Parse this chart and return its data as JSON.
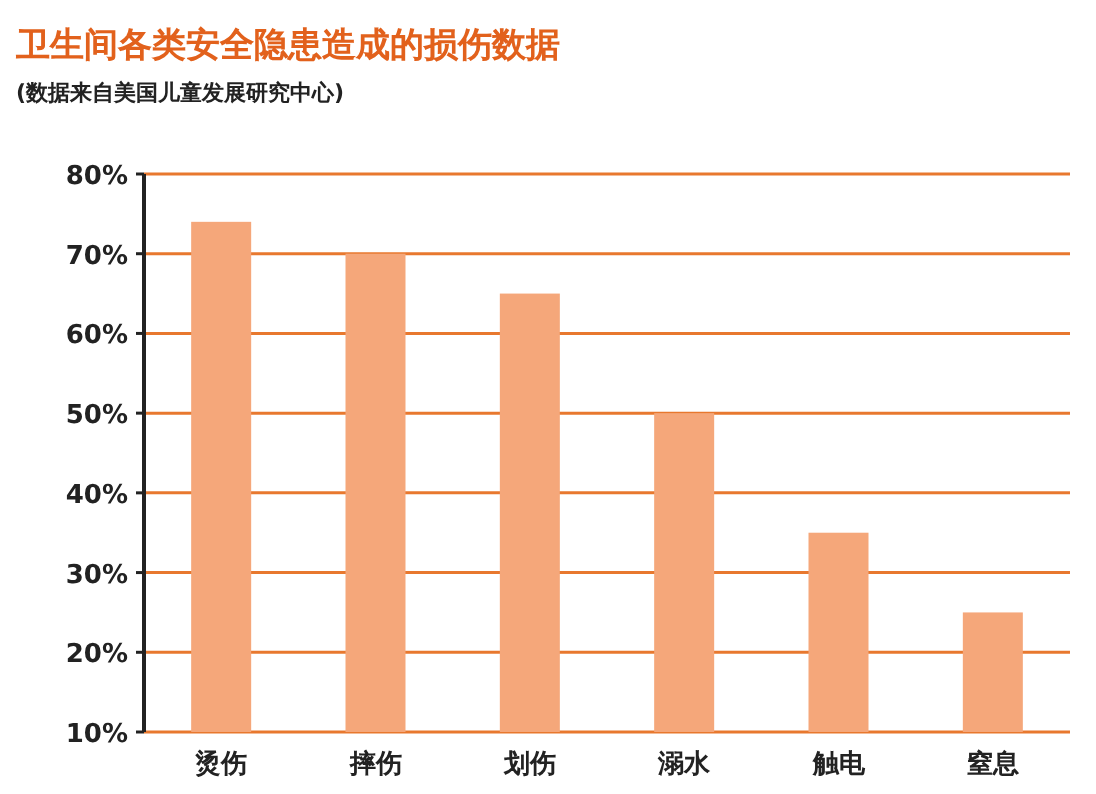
{
  "chart_data": {
    "type": "bar",
    "title": "卫生间各类安全隐患造成的损伤数据",
    "subtitle": "(数据来自美国儿童发展研究中心)",
    "categories": [
      "烫伤",
      "摔伤",
      "划伤",
      "溺水",
      "触电",
      "窒息"
    ],
    "values": [
      74,
      70,
      65,
      50,
      35,
      25
    ],
    "color": "#f5a77a",
    "ylim": [
      10,
      80
    ],
    "yticks": [
      {
        "value": 10,
        "label": "10%"
      },
      {
        "value": 20,
        "label": "20%"
      },
      {
        "value": 30,
        "label": "30%"
      },
      {
        "value": 40,
        "label": "40%"
      },
      {
        "value": 50,
        "label": "50%"
      },
      {
        "value": 60,
        "label": "60%"
      },
      {
        "value": 70,
        "label": "70%"
      },
      {
        "value": 80,
        "label": "80%"
      }
    ],
    "grid": "y"
  }
}
